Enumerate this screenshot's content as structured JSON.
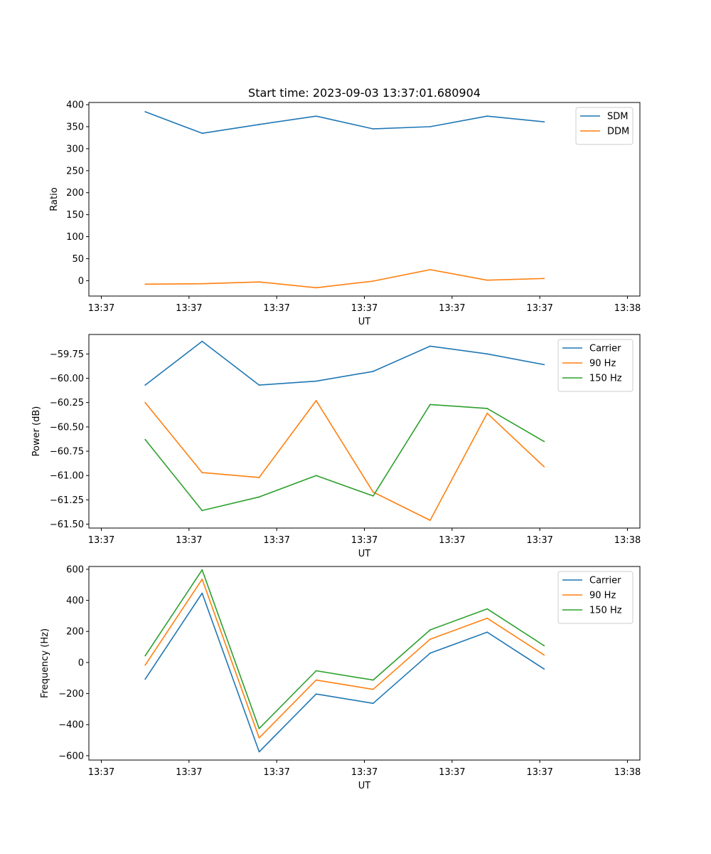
{
  "chart_data": [
    {
      "type": "line",
      "title": "Start time: 2023-09-03 13:37:01.680904",
      "xlabel": "UT",
      "ylabel": "Ratio",
      "x_tick_labels": [
        "13:37",
        "13:37",
        "13:37",
        "13:37",
        "13:37",
        "13:37",
        "13:38"
      ],
      "xlim": [
        0,
        6
      ],
      "ylim": [
        -35,
        405
      ],
      "y_ticks": [
        0,
        50,
        100,
        150,
        200,
        250,
        300,
        350,
        400
      ],
      "x": [
        0.5,
        1.15,
        1.8,
        2.45,
        3.1,
        3.75,
        4.4,
        5.05
      ],
      "series": [
        {
          "name": "SDM",
          "color": "#1f77b4",
          "values": [
            384,
            335,
            355,
            374,
            345,
            350,
            374,
            361
          ]
        },
        {
          "name": "DDM",
          "color": "#ff7f0e",
          "values": [
            -8,
            -7,
            -3,
            -16,
            -1,
            25,
            1,
            5
          ]
        }
      ],
      "legend": "top-right"
    },
    {
      "type": "line",
      "title": "",
      "xlabel": "UT",
      "ylabel": "Power (dB)",
      "x_tick_labels": [
        "13:37",
        "13:37",
        "13:37",
        "13:37",
        "13:37",
        "13:37",
        "13:38"
      ],
      "xlim": [
        0,
        6
      ],
      "ylim": [
        -61.54,
        -59.55
      ],
      "y_ticks": [
        -61.5,
        -61.25,
        -61.0,
        -60.75,
        -60.5,
        -60.25,
        -60.0,
        -59.75
      ],
      "y_tick_labels": [
        "−61.50",
        "−61.25",
        "−61.00",
        "−60.75",
        "−60.50",
        "−60.25",
        "−60.00",
        "−59.75"
      ],
      "x": [
        0.5,
        1.15,
        1.8,
        2.45,
        3.1,
        3.75,
        4.4,
        5.05
      ],
      "series": [
        {
          "name": "Carrier",
          "color": "#1f77b4",
          "values": [
            -60.07,
            -59.62,
            -60.07,
            -60.03,
            -59.93,
            -59.67,
            -59.75,
            -59.86
          ]
        },
        {
          "name": "90 Hz",
          "color": "#ff7f0e",
          "values": [
            -60.25,
            -60.97,
            -61.02,
            -60.23,
            -61.17,
            -61.46,
            -60.36,
            -60.91
          ]
        },
        {
          "name": "150 Hz",
          "color": "#2ca02c",
          "values": [
            -60.63,
            -61.36,
            -61.22,
            -61.0,
            -61.21,
            -60.27,
            -60.31,
            -60.65
          ]
        }
      ],
      "legend": "top-right"
    },
    {
      "type": "line",
      "title": "",
      "xlabel": "UT",
      "ylabel": "Frequency (Hz)",
      "x_tick_labels": [
        "13:37",
        "13:37",
        "13:37",
        "13:37",
        "13:37",
        "13:37",
        "13:38"
      ],
      "xlim": [
        0,
        6
      ],
      "ylim": [
        -628,
        618
      ],
      "y_ticks": [
        -600,
        -400,
        -200,
        0,
        200,
        400,
        600
      ],
      "y_tick_labels": [
        "−600",
        "−400",
        "−200",
        "0",
        "200",
        "400",
        "600"
      ],
      "x": [
        0.5,
        1.15,
        1.8,
        2.45,
        3.1,
        3.75,
        4.4,
        5.05
      ],
      "series": [
        {
          "name": "Carrier",
          "color": "#1f77b4",
          "values": [
            -107,
            446,
            -575,
            -203,
            -263,
            60,
            195,
            -42
          ]
        },
        {
          "name": "90 Hz",
          "color": "#ff7f0e",
          "values": [
            -17,
            536,
            -485,
            -113,
            -173,
            150,
            285,
            48
          ]
        },
        {
          "name": "150 Hz",
          "color": "#2ca02c",
          "values": [
            43,
            596,
            -425,
            -53,
            -113,
            210,
            345,
            108
          ]
        }
      ],
      "legend": "top-right"
    }
  ]
}
